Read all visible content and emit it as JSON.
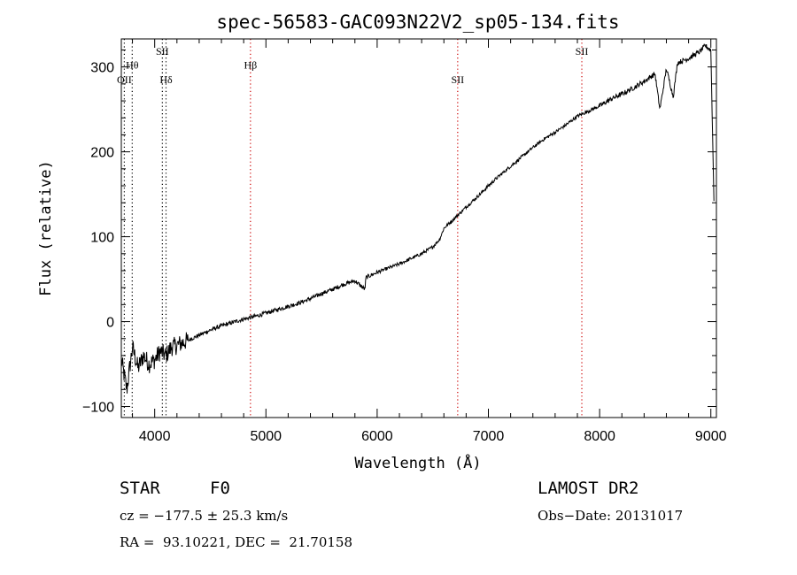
{
  "chart_data": {
    "type": "line",
    "title": "spec-56583-GAC093N22V2_sp05-134.fits",
    "xlabel": "Wavelength (Å)",
    "ylabel": "Flux (relative)",
    "xlim": [
      3700,
      9050
    ],
    "ylim": [
      -113,
      333
    ],
    "xticks": [
      "4000",
      "5000",
      "6000",
      "7000",
      "8000",
      "9000"
    ],
    "yticks": [
      "−100",
      "0",
      "100",
      "200",
      "300"
    ],
    "x_tick_values": [
      4000,
      5000,
      6000,
      7000,
      8000,
      9000
    ],
    "y_tick_values": [
      -100,
      0,
      100,
      200,
      300
    ],
    "series": [
      {
        "x": [
          3700,
          3750,
          3800,
          3850,
          3900,
          3950,
          4000,
          4050,
          4100,
          4150,
          4200,
          4300,
          4400,
          4500,
          4600,
          4700,
          4800,
          4900,
          5000,
          5100,
          5200,
          5300,
          5400,
          5500,
          5600,
          5700,
          5800,
          5890,
          5900,
          6000,
          6100,
          6200,
          6300,
          6400,
          6500,
          6563,
          6600,
          6700,
          6800,
          6900,
          7000,
          7100,
          7200,
          7300,
          7400,
          7500,
          7600,
          7700,
          7800,
          7900,
          8000,
          8100,
          8200,
          8300,
          8400,
          8498,
          8542,
          8600,
          8662,
          8700,
          8800,
          8900,
          8950,
          9000,
          9030
        ],
        "y": [
          -45,
          -80,
          -30,
          -55,
          -40,
          -50,
          -45,
          -35,
          -40,
          -30,
          -28,
          -22,
          -16,
          -10,
          -5,
          -1,
          3,
          6,
          10,
          14,
          18,
          22,
          27,
          33,
          38,
          44,
          48,
          38,
          52,
          58,
          63,
          68,
          74,
          80,
          88,
          97,
          110,
          122,
          135,
          147,
          160,
          172,
          183,
          194,
          205,
          215,
          223,
          232,
          242,
          248,
          254,
          262,
          268,
          275,
          283,
          292,
          250,
          298,
          265,
          305,
          310,
          318,
          325,
          320,
          130
        ]
      }
    ],
    "lines": [
      {
        "label": "OII",
        "x": 3727,
        "label_y": 281,
        "color": "#000000"
      },
      {
        "label": "Hθ",
        "x": 3798,
        "label_y": 298,
        "color": "#000000"
      },
      {
        "label": "SII",
        "x": 4069,
        "label_y": 314,
        "color": "#000000"
      },
      {
        "label": "Hδ",
        "x": 4102,
        "label_y": 281,
        "color": "#000000"
      },
      {
        "label": "Hβ",
        "x": 4861,
        "label_y": 298,
        "color": "#cc0000"
      },
      {
        "label": "SII",
        "x": 6724,
        "label_y": 281,
        "color": "#cc0000"
      },
      {
        "label": "SII",
        "x": 7840,
        "label_y": 314,
        "color": "#cc0000"
      }
    ],
    "grid": false,
    "legend": "none"
  },
  "info": {
    "class_label": "STAR",
    "subclass": "F0",
    "cz": "cz = −177.5 ± 25.3 km/s",
    "radec": "RA =  93.10221, DEC =  21.70158",
    "survey": "LAMOST DR2",
    "obs_date": "Obs−Date: 20131017"
  },
  "colors": {
    "spectrum": "#000000",
    "line_marker_dark": "#000000",
    "line_marker_red": "#cc0000"
  }
}
